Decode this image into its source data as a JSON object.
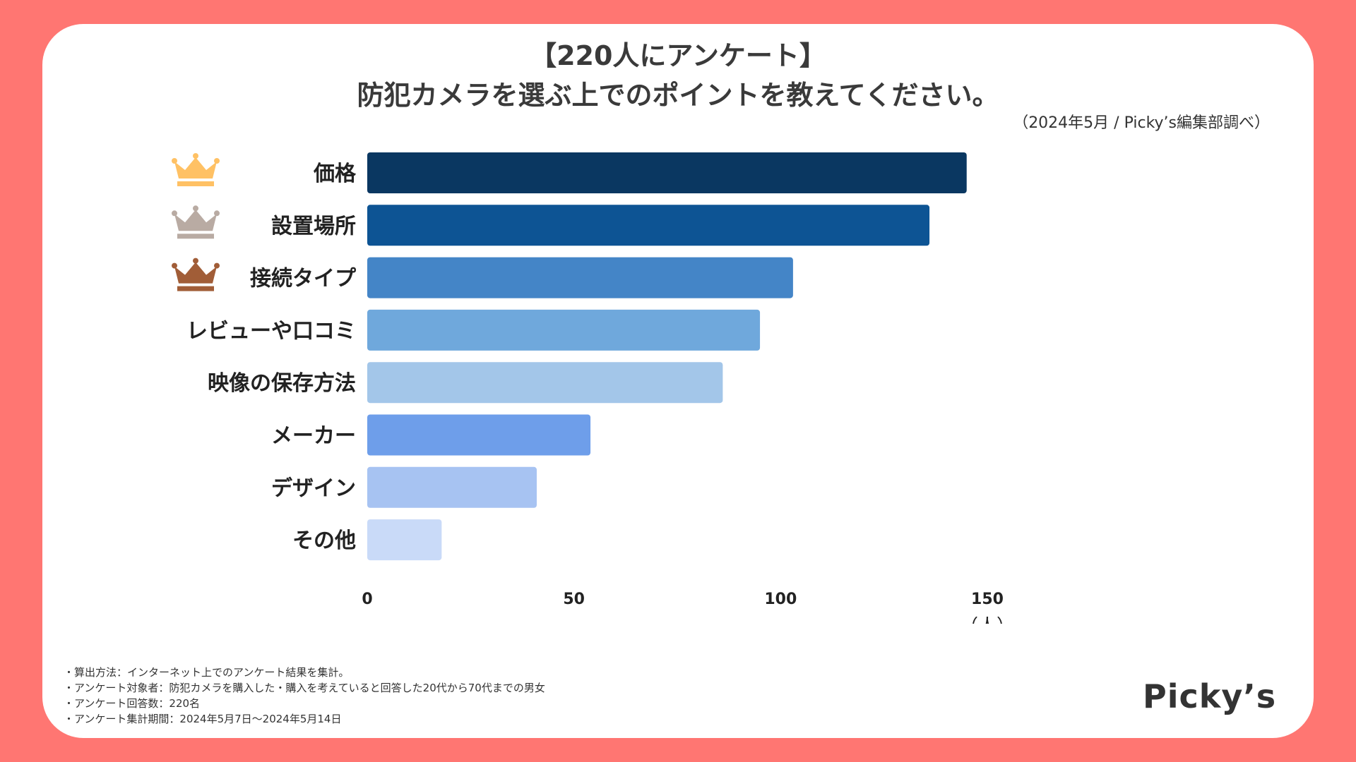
{
  "title_line1": "【220人にアンケート】",
  "title_line2": "防犯カメラを選ぶ上でのポイントを教えてください。",
  "source": "（2024年5月 / Picky’s編集部調べ）",
  "chart_data": {
    "type": "bar",
    "orientation": "horizontal",
    "title": "防犯カメラを選ぶ上でのポイントを教えてください。",
    "categories": [
      "価格",
      "設置場所",
      "接続タイプ",
      "レビューや口コミ",
      "映像の保存方法",
      "メーカー",
      "デザイン",
      "その他"
    ],
    "values": [
      145,
      136,
      103,
      95,
      86,
      54,
      41,
      18
    ],
    "colors": [
      "#0A3761",
      "#0D5494",
      "#4485C7",
      "#6FA8DC",
      "#A3C6E9",
      "#6E9EEA",
      "#A7C3F2",
      "#C9DAF8"
    ],
    "rank_icons": [
      "crown-gold-icon",
      "crown-silver-icon",
      "crown-bronze-icon"
    ],
    "rank_colors": [
      "#FFC164",
      "#B9ABA3",
      "#A15D37"
    ],
    "xlim": [
      0,
      150
    ],
    "xticks": [
      0,
      50,
      100,
      150
    ],
    "xlabel": "（人）",
    "grid": false,
    "legend": "none"
  },
  "footnotes": [
    "・算出方法：インターネット上でのアンケート結果を集計。",
    "・アンケート対象者：防犯カメラを購入した・購入を考えていると回答した20代から70代までの男女",
    "・アンケート回答数：220名",
    "・アンケート集計期間：2024年5月7日〜2024年5月14日"
  ],
  "logo": "Picky’s"
}
